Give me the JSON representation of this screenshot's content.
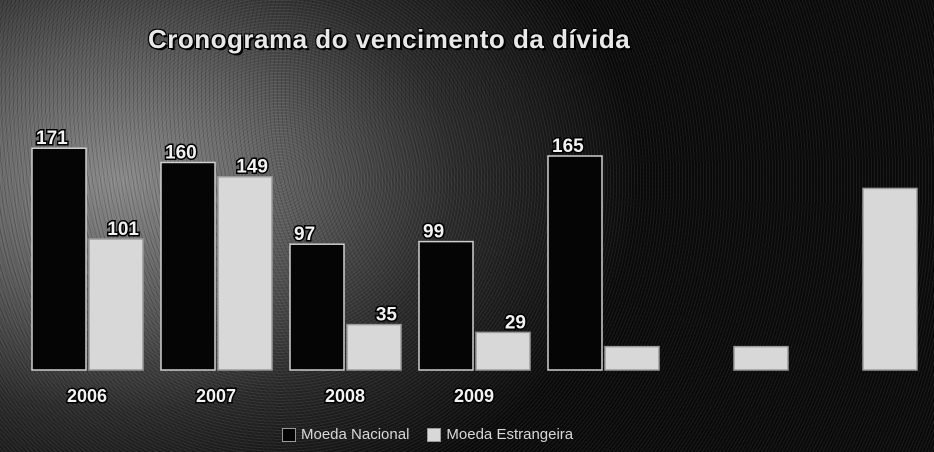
{
  "chart_data": {
    "type": "bar",
    "title": "Cronograma do vencimento da dívida",
    "categories": [
      "2006",
      "2007",
      "2008",
      "2009",
      "",
      "",
      ""
    ],
    "series": [
      {
        "name": "Moeda Nacional",
        "color": "#050505",
        "values": [
          171,
          160,
          97,
          99,
          165,
          null,
          null
        ],
        "labels": [
          "171",
          "160",
          "97",
          "99",
          "165",
          "",
          ""
        ]
      },
      {
        "name": "Moeda Estrangeira",
        "color": "#d8d8d8",
        "values": [
          101,
          149,
          35,
          29,
          18,
          18,
          140
        ],
        "labels": [
          "101",
          "149",
          "35",
          "29",
          "",
          "",
          ""
        ]
      }
    ],
    "ylim": [
      0,
      220
    ],
    "grid": false,
    "legend_position": "bottom"
  }
}
